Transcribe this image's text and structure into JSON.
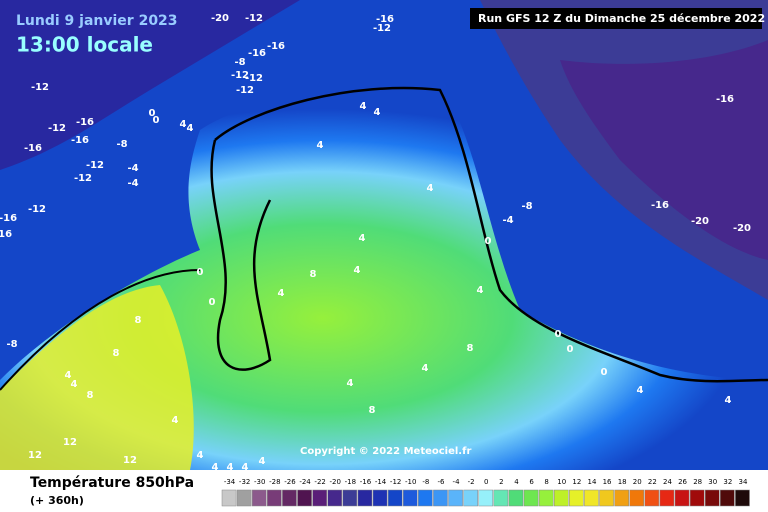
{
  "header": {
    "date": "Lundi 9 janvier 2023",
    "time": "13:00 locale",
    "run": "Run GFS 12 Z du Dimanche 25 décembre 2022"
  },
  "copyright": "Copyright © 2022 Meteociel.fr",
  "footer": {
    "title": "Température 850hPa",
    "lead": "(+ 360h)"
  },
  "scale": {
    "values": [
      -34,
      -32,
      -30,
      -28,
      -26,
      -24,
      -22,
      -20,
      -18,
      -16,
      -14,
      -12,
      -10,
      -8,
      -6,
      -4,
      -2,
      0,
      2,
      4,
      6,
      8,
      10,
      12,
      14,
      16,
      18,
      20,
      22,
      24,
      26,
      28,
      30,
      32,
      34
    ],
    "colors": [
      "#c8c8c8",
      "#a0a0a0",
      "#8c5a8c",
      "#783c78",
      "#642864",
      "#501450",
      "#5a1e78",
      "#46288c",
      "#3c3c96",
      "#2828a0",
      "#1e32b4",
      "#1446c8",
      "#1e5adc",
      "#1e78f0",
      "#3c96f5",
      "#5ab4fa",
      "#78d2fa",
      "#96f0fa",
      "#64e6b4",
      "#50dc78",
      "#6ee650",
      "#96f03c",
      "#bef028",
      "#e6f028",
      "#f0e628",
      "#f0c81e",
      "#f0a014",
      "#f0780a",
      "#f05014",
      "#e62814",
      "#c81414",
      "#a00a0a",
      "#780a0a",
      "#500a0a",
      "#1e0a0a"
    ]
  },
  "map": {
    "contour_labels": [
      -20,
      -12,
      -16,
      -12,
      -16,
      -16,
      -8,
      -12,
      -12,
      -12,
      -12,
      -16,
      -12,
      -16,
      -16,
      -8,
      -12,
      -12,
      -4,
      -4,
      0,
      0,
      4,
      4,
      -16,
      -12,
      -16,
      -8,
      4,
      4,
      4,
      4,
      4,
      8,
      4,
      0,
      0,
      4,
      -4,
      -8,
      0,
      -16,
      -16,
      -20,
      -20,
      4,
      8,
      0,
      0,
      0,
      4,
      4,
      4,
      8,
      4,
      4,
      4,
      4,
      4,
      4,
      4,
      12,
      12,
      12,
      8,
      8,
      8,
      4,
      4
    ]
  }
}
